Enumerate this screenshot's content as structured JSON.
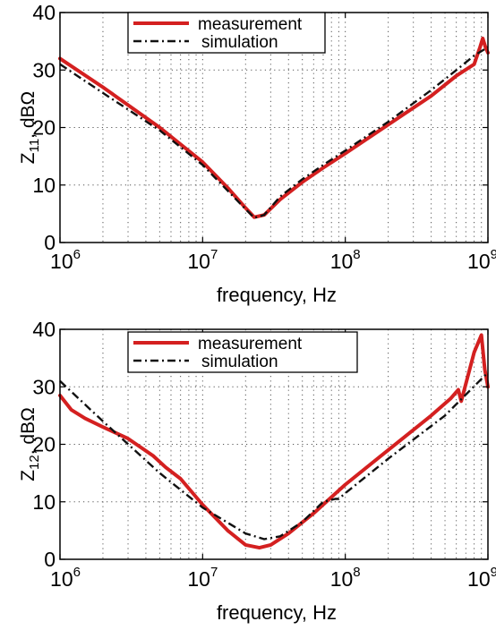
{
  "chart_data": [
    {
      "type": "line",
      "xscale": "log",
      "xlim": [
        1000000,
        1000000000
      ],
      "ylim": [
        0,
        40
      ],
      "x_ticks": [
        1000000,
        10000000,
        100000000,
        1000000000
      ],
      "x_tick_labels": [
        {
          "base": "10",
          "exp": "6"
        },
        {
          "base": "10",
          "exp": "7"
        },
        {
          "base": "10",
          "exp": "8"
        },
        {
          "base": "10",
          "exp": "9"
        }
      ],
      "y_ticks": [
        0,
        10,
        20,
        30,
        40
      ],
      "y_tick_labels": [
        "0",
        "10",
        "20",
        "30",
        "40"
      ],
      "xlabel": "frequency, Hz",
      "ylabel": {
        "pre": "Z",
        "sub": "11",
        "post": ", dBΩ"
      },
      "grid": "dotted",
      "legend_position": "top-center",
      "series": [
        {
          "name": "measurement",
          "color": "#d42020",
          "style": "solid",
          "x": [
            1000000,
            2000000,
            5000000,
            10000000,
            15000000,
            20000000,
            23000000,
            27000000,
            35000000,
            50000000,
            70000000,
            100000000,
            200000000,
            400000000,
            600000000,
            800000000,
            880000000,
            920000000,
            960000000,
            1000000000
          ],
          "y": [
            32,
            27,
            20,
            14,
            9.5,
            6,
            4.4,
            4.8,
            7.5,
            10.5,
            13,
            15.5,
            20.5,
            25.5,
            29,
            31,
            34,
            35.5,
            34,
            33
          ]
        },
        {
          "name": "simulation",
          "color": "#111111",
          "style": "dashdot",
          "x": [
            1000000,
            2000000,
            5000000,
            10000000,
            15000000,
            20000000,
            23000000,
            27000000,
            35000000,
            50000000,
            70000000,
            100000000,
            200000000,
            400000000,
            600000000,
            800000000,
            1000000000
          ],
          "y": [
            31,
            26,
            19.5,
            13.5,
            9,
            5.8,
            4.3,
            4.8,
            8,
            11,
            13.5,
            16,
            21,
            26.5,
            30,
            32.5,
            34
          ]
        }
      ]
    },
    {
      "type": "line",
      "xscale": "log",
      "xlim": [
        1000000,
        1000000000
      ],
      "ylim": [
        0,
        40
      ],
      "x_ticks": [
        1000000,
        10000000,
        100000000,
        1000000000
      ],
      "x_tick_labels": [
        {
          "base": "10",
          "exp": "6"
        },
        {
          "base": "10",
          "exp": "7"
        },
        {
          "base": "10",
          "exp": "8"
        },
        {
          "base": "10",
          "exp": "9"
        }
      ],
      "y_ticks": [
        0,
        10,
        20,
        30,
        40
      ],
      "y_tick_labels": [
        "0",
        "10",
        "20",
        "30",
        "40"
      ],
      "xlabel": "frequency, Hz",
      "ylabel": {
        "pre": "Z",
        "sub": "12",
        "post": ", dBΩ"
      },
      "grid": "dotted",
      "legend_position": "top-center",
      "series": [
        {
          "name": "measurement",
          "color": "#d42020",
          "style": "solid",
          "x": [
            1000000,
            1200000,
            1500000,
            2000000,
            3000000,
            4500000,
            5500000,
            7000000,
            10000000,
            15000000,
            20000000,
            25000000,
            30000000,
            40000000,
            60000000,
            100000000,
            200000000,
            400000000,
            550000000,
            620000000,
            650000000,
            700000000,
            800000000,
            900000000,
            950000000,
            1000000000
          ],
          "y": [
            28.5,
            26,
            24.5,
            23,
            21,
            18,
            16,
            14,
            9.5,
            5,
            2.5,
            2,
            2.5,
            4.5,
            8,
            13,
            19,
            25,
            28,
            29.5,
            27.5,
            30.5,
            36,
            39,
            33,
            30
          ]
        },
        {
          "name": "simulation",
          "color": "#111111",
          "style": "dashdot",
          "x": [
            1000000,
            2000000,
            5000000,
            10000000,
            20000000,
            27000000,
            35000000,
            50000000,
            70000000,
            85000000,
            90000000,
            100000000,
            200000000,
            500000000,
            1000000000
          ],
          "y": [
            31,
            24,
            15,
            9,
            4.5,
            3.5,
            4,
            6.5,
            10,
            10.5,
            10.5,
            11.5,
            17.5,
            25,
            32.5
          ]
        }
      ]
    }
  ]
}
